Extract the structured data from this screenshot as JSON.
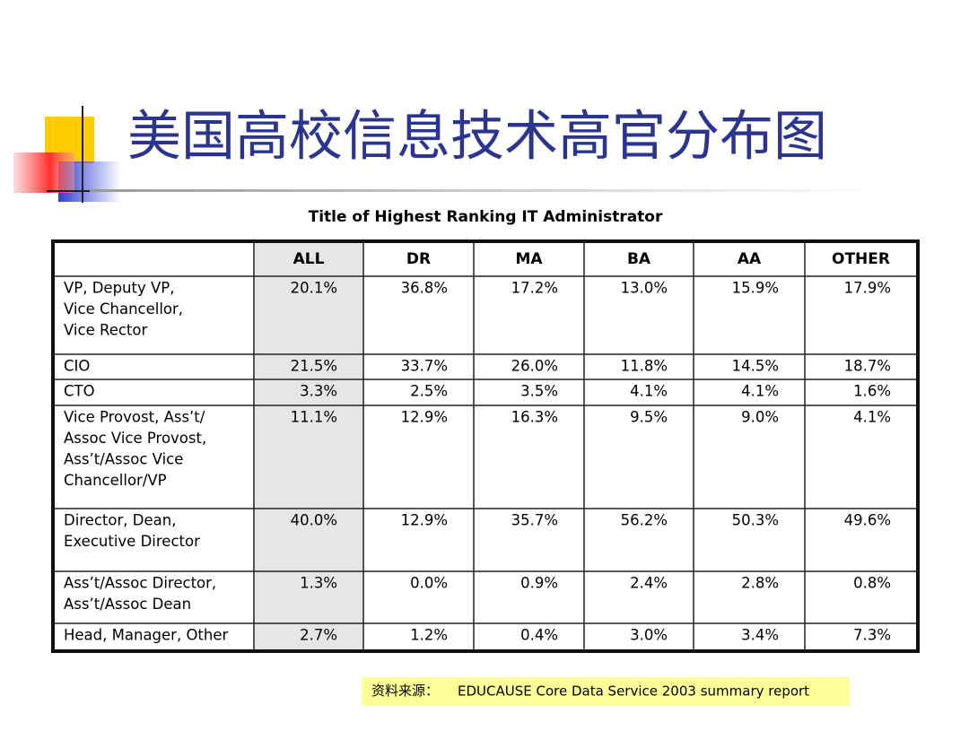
{
  "header": {
    "title": "美国高校信息技术高官分布图"
  },
  "table": {
    "caption": "Title of Highest Ranking IT Administrator",
    "columns": [
      "ALL",
      "DR",
      "MA",
      "BA",
      "AA",
      "OTHER"
    ],
    "rows": [
      {
        "label": [
          "VP, Deputy VP,",
          "Vice Chancellor,",
          "Vice Rector"
        ],
        "cells": [
          "20.1%",
          "36.8%",
          "17.2%",
          "13.0%",
          "15.9%",
          "17.9%"
        ]
      },
      {
        "label": [
          "CIO"
        ],
        "cells": [
          "21.5%",
          "33.7%",
          "26.0%",
          "11.8%",
          "14.5%",
          "18.7%"
        ]
      },
      {
        "label": [
          "CTO"
        ],
        "cells": [
          "3.3%",
          "2.5%",
          "3.5%",
          "4.1%",
          "4.1%",
          "1.6%"
        ]
      },
      {
        "label": [
          "Vice Provost, Ass’t/",
          "Assoc Vice Provost,",
          "Ass’t/Assoc Vice",
          "Chancellor/VP"
        ],
        "cells": [
          "11.1%",
          "12.9%",
          "16.3%",
          "9.5%",
          "9.0%",
          "4.1%"
        ]
      },
      {
        "label": [
          "Director, Dean,",
          "Executive Director"
        ],
        "cells": [
          "40.0%",
          "12.9%",
          "35.7%",
          "56.2%",
          "50.3%",
          "49.6%"
        ]
      },
      {
        "label": [
          "Ass’t/Assoc Director,",
          "Ass’t/Assoc Dean"
        ],
        "cells": [
          "1.3%",
          "0.0%",
          "0.9%",
          "2.4%",
          "2.8%",
          "0.8%"
        ]
      },
      {
        "label": [
          "Head, Manager, Other"
        ],
        "cells": [
          "2.7%",
          "1.2%",
          "0.4%",
          "3.0%",
          "3.4%",
          "7.3%"
        ]
      }
    ]
  },
  "source": {
    "label": "资料来源：",
    "text": "EDUCAUSE Core Data Service 2003 summary report"
  }
}
